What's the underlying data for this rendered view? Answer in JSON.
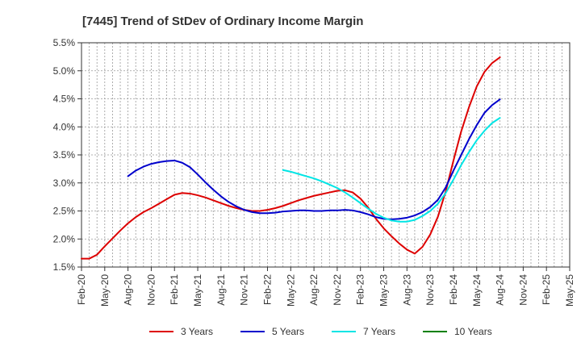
{
  "chart_data": {
    "type": "line",
    "title": "[7445]  Trend of StDev of Ordinary Income Margin",
    "xlabel": "",
    "ylabel": "",
    "x_tick_labels": [
      "Feb-20",
      "May-20",
      "Aug-20",
      "Nov-20",
      "Feb-21",
      "May-21",
      "Aug-21",
      "Nov-21",
      "Feb-22",
      "May-22",
      "Aug-22",
      "Nov-22",
      "Feb-23",
      "May-23",
      "Aug-23",
      "Nov-23",
      "Feb-24",
      "May-24",
      "Aug-24",
      "Nov-24",
      "Feb-25",
      "May-25"
    ],
    "y_tick_labels": [
      "1.5%",
      "2.0%",
      "2.5%",
      "3.0%",
      "3.5%",
      "4.0%",
      "4.5%",
      "5.0%",
      "5.5%"
    ],
    "ylim": [
      1.5,
      5.5
    ],
    "y_unit": "%",
    "grid": true,
    "grid_style": "dotted",
    "legend_position": "bottom",
    "x_index_note": "months since Feb-20",
    "series": [
      {
        "name": "3 Years",
        "color": "#dd0000",
        "points": [
          [
            0,
            1.65
          ],
          [
            1,
            1.65
          ],
          [
            2,
            1.72
          ],
          [
            3,
            1.87
          ],
          [
            4,
            2.01
          ],
          [
            5,
            2.15
          ],
          [
            6,
            2.28
          ],
          [
            7,
            2.39
          ],
          [
            8,
            2.48
          ],
          [
            9,
            2.55
          ],
          [
            10,
            2.63
          ],
          [
            11,
            2.71
          ],
          [
            12,
            2.79
          ],
          [
            13,
            2.82
          ],
          [
            14,
            2.81
          ],
          [
            15,
            2.78
          ],
          [
            16,
            2.74
          ],
          [
            17,
            2.69
          ],
          [
            18,
            2.64
          ],
          [
            19,
            2.59
          ],
          [
            20,
            2.55
          ],
          [
            21,
            2.52
          ],
          [
            22,
            2.5
          ],
          [
            23,
            2.5
          ],
          [
            24,
            2.52
          ],
          [
            25,
            2.55
          ],
          [
            26,
            2.59
          ],
          [
            27,
            2.64
          ],
          [
            28,
            2.69
          ],
          [
            29,
            2.73
          ],
          [
            30,
            2.77
          ],
          [
            31,
            2.8
          ],
          [
            32,
            2.83
          ],
          [
            33,
            2.86
          ],
          [
            34,
            2.87
          ],
          [
            35,
            2.83
          ],
          [
            36,
            2.72
          ],
          [
            37,
            2.56
          ],
          [
            38,
            2.36
          ],
          [
            39,
            2.19
          ],
          [
            40,
            2.05
          ],
          [
            41,
            1.92
          ],
          [
            42,
            1.81
          ],
          [
            43,
            1.74
          ],
          [
            44,
            1.86
          ],
          [
            45,
            2.08
          ],
          [
            46,
            2.4
          ],
          [
            47,
            2.85
          ],
          [
            48,
            3.4
          ],
          [
            49,
            3.92
          ],
          [
            50,
            4.35
          ],
          [
            51,
            4.72
          ],
          [
            52,
            4.98
          ],
          [
            53,
            5.14
          ],
          [
            54,
            5.24
          ]
        ]
      },
      {
        "name": "5 Years",
        "color": "#0000cc",
        "points": [
          [
            6,
            3.12
          ],
          [
            7,
            3.22
          ],
          [
            8,
            3.29
          ],
          [
            9,
            3.34
          ],
          [
            10,
            3.37
          ],
          [
            11,
            3.39
          ],
          [
            12,
            3.4
          ],
          [
            13,
            3.36
          ],
          [
            14,
            3.28
          ],
          [
            15,
            3.15
          ],
          [
            16,
            3.01
          ],
          [
            17,
            2.88
          ],
          [
            18,
            2.76
          ],
          [
            19,
            2.66
          ],
          [
            20,
            2.58
          ],
          [
            21,
            2.52
          ],
          [
            22,
            2.48
          ],
          [
            23,
            2.46
          ],
          [
            24,
            2.46
          ],
          [
            25,
            2.47
          ],
          [
            26,
            2.49
          ],
          [
            27,
            2.5
          ],
          [
            28,
            2.51
          ],
          [
            29,
            2.51
          ],
          [
            30,
            2.5
          ],
          [
            31,
            2.5
          ],
          [
            32,
            2.51
          ],
          [
            33,
            2.51
          ],
          [
            34,
            2.52
          ],
          [
            35,
            2.51
          ],
          [
            36,
            2.48
          ],
          [
            37,
            2.44
          ],
          [
            38,
            2.39
          ],
          [
            39,
            2.36
          ],
          [
            40,
            2.35
          ],
          [
            41,
            2.36
          ],
          [
            42,
            2.38
          ],
          [
            43,
            2.42
          ],
          [
            44,
            2.48
          ],
          [
            45,
            2.57
          ],
          [
            46,
            2.7
          ],
          [
            47,
            2.92
          ],
          [
            48,
            3.22
          ],
          [
            49,
            3.5
          ],
          [
            50,
            3.78
          ],
          [
            51,
            4.03
          ],
          [
            52,
            4.25
          ],
          [
            53,
            4.39
          ],
          [
            54,
            4.49
          ]
        ]
      },
      {
        "name": "7 Years",
        "color": "#00e5e5",
        "points": [
          [
            26,
            3.23
          ],
          [
            27,
            3.2
          ],
          [
            28,
            3.16
          ],
          [
            29,
            3.12
          ],
          [
            30,
            3.08
          ],
          [
            31,
            3.03
          ],
          [
            32,
            2.97
          ],
          [
            33,
            2.91
          ],
          [
            34,
            2.83
          ],
          [
            35,
            2.74
          ],
          [
            36,
            2.64
          ],
          [
            37,
            2.54
          ],
          [
            38,
            2.45
          ],
          [
            39,
            2.38
          ],
          [
            40,
            2.33
          ],
          [
            41,
            2.31
          ],
          [
            42,
            2.31
          ],
          [
            43,
            2.34
          ],
          [
            44,
            2.41
          ],
          [
            45,
            2.5
          ],
          [
            46,
            2.63
          ],
          [
            47,
            2.82
          ],
          [
            48,
            3.06
          ],
          [
            49,
            3.32
          ],
          [
            50,
            3.55
          ],
          [
            51,
            3.76
          ],
          [
            52,
            3.93
          ],
          [
            53,
            4.07
          ],
          [
            54,
            4.16
          ]
        ]
      },
      {
        "name": "10 Years",
        "color": "#008000",
        "points": []
      }
    ]
  }
}
